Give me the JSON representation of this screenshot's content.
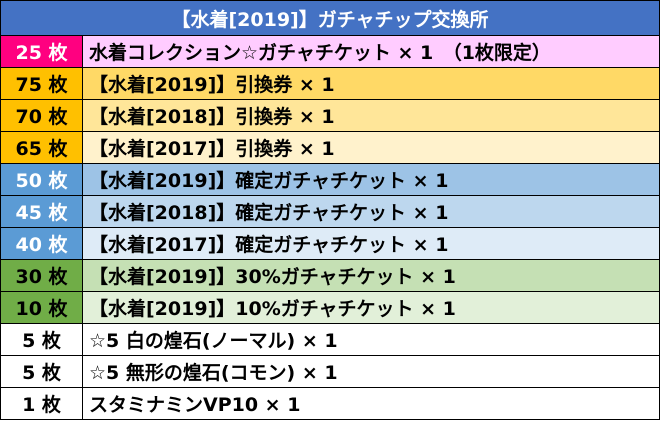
{
  "title": "【水着[2019]】ガチャチップ交換所",
  "rows": [
    {
      "cost": "25 枚",
      "item": "水着コレクション☆ガチャチケット × 1　（1枚限定）",
      "cost_bg": "#ff0080",
      "cost_fg": "#ffffff",
      "item_bg": "#ffccff"
    },
    {
      "cost": "75 枚",
      "item": "【水着[2019]】引換券 × 1",
      "cost_bg": "#ffc000",
      "cost_fg": "#000000",
      "item_bg": "#ffd966"
    },
    {
      "cost": "70 枚",
      "item": "【水着[2018]】引換券 × 1",
      "cost_bg": "#ffc000",
      "cost_fg": "#000000",
      "item_bg": "#ffe699"
    },
    {
      "cost": "65 枚",
      "item": "【水着[2017]】引換券 × 1",
      "cost_bg": "#ffc000",
      "cost_fg": "#000000",
      "item_bg": "#fff2cc"
    },
    {
      "cost": "50 枚",
      "item": "【水着[2019]】確定ガチャチケット × 1",
      "cost_bg": "#5b9bd5",
      "cost_fg": "#ffffff",
      "item_bg": "#9dc3e6"
    },
    {
      "cost": "45 枚",
      "item": "【水着[2018]】確定ガチャチケット × 1",
      "cost_bg": "#5b9bd5",
      "cost_fg": "#ffffff",
      "item_bg": "#bdd7ee"
    },
    {
      "cost": "40 枚",
      "item": "【水着[2017]】確定ガチャチケット × 1",
      "cost_bg": "#5b9bd5",
      "cost_fg": "#ffffff",
      "item_bg": "#deebf7"
    },
    {
      "cost": "30 枚",
      "item": "【水着[2019]】30%ガチャチケット × 1",
      "cost_bg": "#70ad47",
      "cost_fg": "#000000",
      "item_bg": "#c5e0b4"
    },
    {
      "cost": "10 枚",
      "item": "【水着[2019]】10%ガチャチケット × 1",
      "cost_bg": "#70ad47",
      "cost_fg": "#000000",
      "item_bg": "#e2f0d9"
    },
    {
      "cost": "5 枚",
      "item": "☆5 白の煌石(ノーマル) × 1",
      "cost_bg": "#ffffff",
      "cost_fg": "#000000",
      "item_bg": "#ffffff"
    },
    {
      "cost": "5 枚",
      "item": "☆5 無形の煌石(コモン) × 1",
      "cost_bg": "#ffffff",
      "cost_fg": "#000000",
      "item_bg": "#ffffff"
    },
    {
      "cost": "1 枚",
      "item": "スタミナミンVP10 × 1",
      "cost_bg": "#ffffff",
      "cost_fg": "#000000",
      "item_bg": "#ffffff"
    }
  ]
}
